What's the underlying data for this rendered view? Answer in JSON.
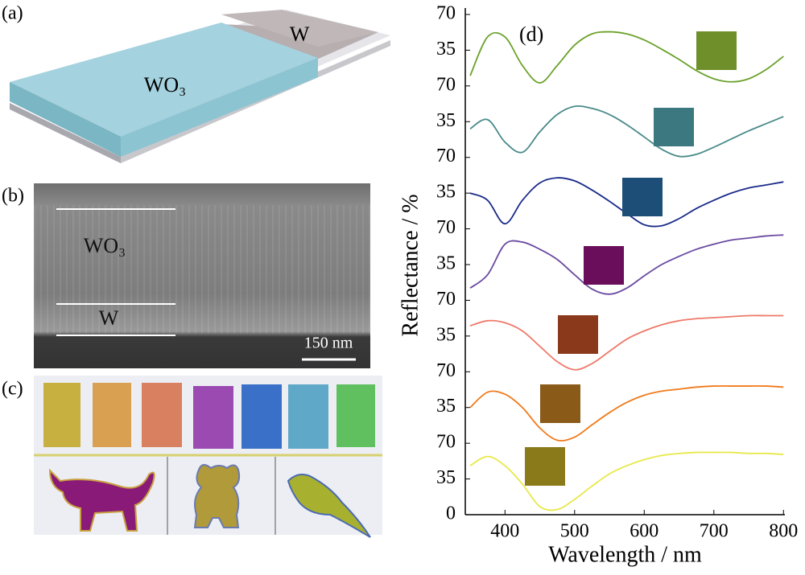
{
  "figure": {
    "panel_labels": [
      "(a)",
      "(b)",
      "(c)",
      "(d)"
    ],
    "ylabel": "Reflectance / %"
  },
  "panel_a": {
    "labels": [
      "WO₃",
      "W"
    ]
  },
  "panel_b": {
    "labels": [
      "WO₃",
      "W"
    ],
    "scale_bar": "150 nm"
  },
  "chart_data": [
    {
      "type": "line",
      "color": "#6aa12a",
      "swatch": "#6f8f2a",
      "ylim": [
        0,
        70
      ],
      "yticks": [
        35,
        70
      ],
      "x": [
        350,
        375,
        400,
        425,
        450,
        475,
        500,
        525,
        550,
        575,
        600,
        625,
        650,
        675,
        700,
        725,
        750,
        775,
        800
      ],
      "values": [
        10,
        48,
        48,
        20,
        3,
        20,
        40,
        51,
        53,
        51,
        45,
        36,
        26,
        15,
        7,
        4,
        7,
        16,
        29
      ]
    },
    {
      "type": "line",
      "color": "#4a8a8a",
      "swatch": "#3c7880",
      "ylim": [
        0,
        70
      ],
      "yticks": [
        35,
        70
      ],
      "x": [
        350,
        375,
        400,
        425,
        450,
        475,
        500,
        525,
        550,
        575,
        600,
        625,
        650,
        675,
        700,
        725,
        750,
        775,
        800
      ],
      "values": [
        28,
        37,
        15,
        5,
        25,
        42,
        50,
        48,
        42,
        32,
        20,
        8,
        1,
        3,
        10,
        18,
        26,
        33,
        40
      ]
    },
    {
      "type": "line",
      "color": "#1a2a8a",
      "swatch": "#1c4e78",
      "ylim": [
        0,
        70
      ],
      "yticks": [
        35,
        70
      ],
      "x": [
        350,
        375,
        400,
        425,
        450,
        475,
        500,
        525,
        550,
        575,
        600,
        625,
        650,
        675,
        700,
        725,
        750,
        775,
        800
      ],
      "values": [
        35,
        28,
        5,
        28,
        45,
        50,
        47,
        38,
        27,
        15,
        4,
        3,
        10,
        20,
        28,
        35,
        40,
        43,
        46
      ]
    },
    {
      "type": "line",
      "color": "#6a4aa0",
      "swatch": "#6a0d5a",
      "ylim": [
        0,
        70
      ],
      "yticks": [
        35,
        70
      ],
      "x": [
        350,
        375,
        400,
        425,
        450,
        475,
        500,
        525,
        550,
        575,
        600,
        625,
        650,
        675,
        700,
        725,
        750,
        775,
        800
      ],
      "values": [
        12,
        25,
        55,
        57,
        50,
        40,
        25,
        11,
        6,
        12,
        24,
        35,
        43,
        50,
        55,
        59,
        61,
        63,
        64
      ]
    },
    {
      "type": "line",
      "color": "#ee7a6a",
      "swatch": "#8a3a1a",
      "ylim": [
        0,
        70
      ],
      "yticks": [
        35,
        70
      ],
      "x": [
        350,
        375,
        400,
        425,
        450,
        475,
        500,
        525,
        550,
        575,
        600,
        625,
        650,
        675,
        700,
        725,
        750,
        775,
        800
      ],
      "values": [
        45,
        50,
        48,
        40,
        25,
        10,
        2,
        8,
        20,
        32,
        40,
        46,
        50,
        52,
        53,
        54,
        55,
        55,
        55
      ]
    },
    {
      "type": "line",
      "color": "#f07a1a",
      "swatch": "#8a5a18",
      "ylim": [
        0,
        70
      ],
      "yticks": [
        35,
        70
      ],
      "x": [
        350,
        375,
        400,
        425,
        450,
        475,
        500,
        525,
        550,
        575,
        600,
        625,
        650,
        675,
        700,
        725,
        750,
        775,
        800
      ],
      "values": [
        35,
        50,
        48,
        35,
        15,
        3,
        6,
        18,
        30,
        40,
        47,
        51,
        53,
        55,
        56,
        56,
        56,
        56,
        55
      ]
    },
    {
      "type": "line",
      "color": "#e8e84a",
      "swatch": "#8a7a1a",
      "ylim": [
        0,
        70
      ],
      "yticks": [
        0,
        35,
        70
      ],
      "x": [
        350,
        375,
        400,
        425,
        450,
        475,
        500,
        525,
        550,
        575,
        600,
        625,
        650,
        675,
        700,
        725,
        750,
        775,
        800
      ],
      "values": [
        48,
        57,
        48,
        30,
        8,
        5,
        15,
        28,
        40,
        48,
        54,
        58,
        60,
        61,
        61,
        61,
        60,
        60,
        59
      ],
      "xlim": [
        343,
        802
      ],
      "xticks": [
        400,
        500,
        600,
        700,
        800
      ],
      "xlabel": "Wavelength / nm"
    }
  ]
}
